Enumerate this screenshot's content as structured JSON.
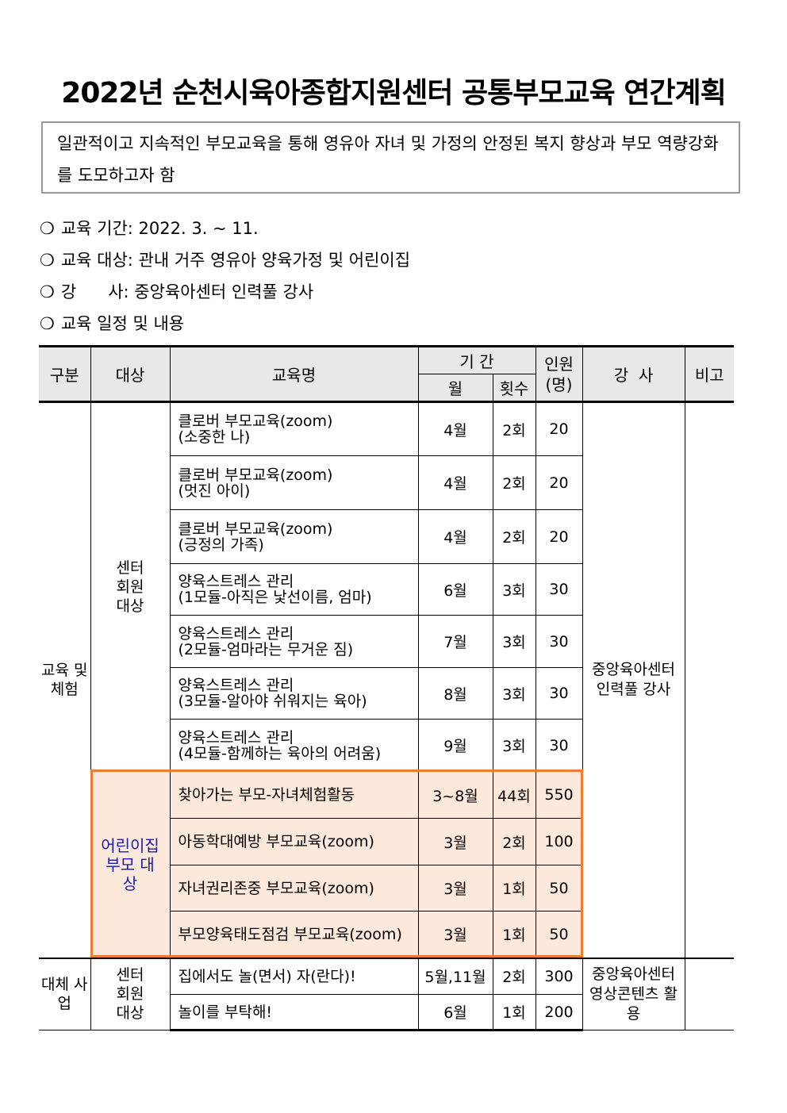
{
  "title": "2022년 순천시육아종합지원센터 공통부모교육 연간계획",
  "purpose": "일관적이고 지속적인 부모교육을 통해 영유아 자녀 및 가정의 안정된 복지 향상과 부모 역량강화를 도모하고자 함",
  "info": [
    {
      "bullet": "❍",
      "text": "교육 기간: 2022. 3. ~ 11."
    },
    {
      "bullet": "❍",
      "text": "교육 대상: 관내 거주 영유아 양육가정 및 어린이집"
    },
    {
      "bullet": "❍",
      "text": "강      사: 중앙육아센터 인력풀 강사"
    },
    {
      "bullet": "❍",
      "text": "교육 일정 및 내용"
    }
  ],
  "table": {
    "headers": {
      "category": "구분",
      "target": "대상",
      "name": "교육명",
      "period": "기 간",
      "month": "월",
      "count": "횟수",
      "people": "인원(명)",
      "instructor": "강  사",
      "note": "비고"
    },
    "groups": [
      {
        "category": "교육 및 체험",
        "instructor": "중앙육아센터 인력풀 강사"
      },
      {
        "category": "대체 사업",
        "instructor": "중앙육아센터 영상콘텐츠 활용"
      }
    ],
    "targets": [
      "센터 회원 대상",
      "어린이집 부모 대상",
      "센터 회원 대상"
    ],
    "rows": [
      {
        "name": "클로버 부모교육(zoom)",
        "sub": "(소중한 나)",
        "month": "4월",
        "count": "2회",
        "people": "20"
      },
      {
        "name": "클로버 부모교육(zoom)",
        "sub": "(멋진 아이)",
        "month": "4월",
        "count": "2회",
        "people": "20"
      },
      {
        "name": "클로버 부모교육(zoom)",
        "sub": "(긍정의 가족)",
        "month": "4월",
        "count": "2회",
        "people": "20"
      },
      {
        "name": "양육스트레스 관리",
        "sub": "(1모듈-아직은 낯선이름, 엄마)",
        "month": "6월",
        "count": "3회",
        "people": "30"
      },
      {
        "name": "양육스트레스 관리",
        "sub": "(2모듈-엄마라는 무거운 짐)",
        "month": "7월",
        "count": "3회",
        "people": "30"
      },
      {
        "name": "양육스트레스 관리",
        "sub": "(3모듈-알아야 쉬워지는 육아)",
        "month": "8월",
        "count": "3회",
        "people": "30"
      },
      {
        "name": "양육스트레스 관리",
        "sub": "(4모듈-함께하는 육아의 어려움)",
        "month": "9월",
        "count": "3회",
        "people": "30"
      },
      {
        "name": "찾아가는 부모-자녀체험활동",
        "month": "3~8월",
        "count": "44회",
        "people": "550"
      },
      {
        "name": "아동학대예방 부모교육(zoom)",
        "month": "3월",
        "count": "2회",
        "people": "100"
      },
      {
        "name": "자녀권리존중 부모교육(zoom)",
        "month": "3월",
        "count": "1회",
        "people": "50"
      },
      {
        "name": "부모양육태도점검 부모교육(zoom)",
        "month": "3월",
        "count": "1회",
        "people": "50"
      },
      {
        "name": "집에서도 놀(면서) 자(란다)!",
        "month": "5월,11월",
        "count": "2회",
        "people": "300"
      },
      {
        "name": "놀이를 부탁해!",
        "month": "6월",
        "count": "1회",
        "people": "200"
      }
    ]
  },
  "colors": {
    "highlight_bg": "#fde9dc",
    "highlight_border": "#ed7d31",
    "target_text": "#1a1aa8",
    "header_bg": "#e8e8e8"
  }
}
